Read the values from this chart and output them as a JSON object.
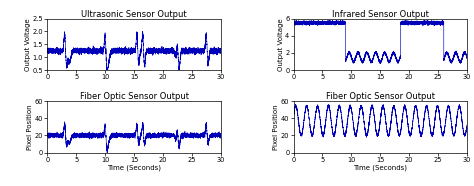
{
  "titles": [
    "Ultrasonic Sensor Output",
    "Infrared Sensor Output",
    "Fiber Optic Sensor Output",
    "Fiber Optic Sensor Output"
  ],
  "ylabels": [
    "Output Voltage",
    "Output Voltage",
    "Pixel Position",
    "Pixel Position"
  ],
  "xlabel": "Time (Seconds)",
  "xlim": [
    0,
    30
  ],
  "ylims": [
    [
      0.5,
      2.5
    ],
    [
      0,
      6
    ],
    [
      0,
      60
    ],
    [
      0,
      60
    ]
  ],
  "yticks_0": [
    0.5,
    1.0,
    1.5,
    2.0,
    2.5
  ],
  "yticks_1": [
    0,
    2,
    4,
    6
  ],
  "yticks_2": [
    0,
    20,
    40,
    60
  ],
  "yticks_3": [
    0,
    20,
    40,
    60
  ],
  "xticks": [
    0,
    5,
    10,
    15,
    20,
    25,
    30
  ],
  "line_color": "#0000bb",
  "bg_color": "#ffffff",
  "title_fontsize": 6.0,
  "label_fontsize": 5.0,
  "tick_fontsize": 4.8
}
